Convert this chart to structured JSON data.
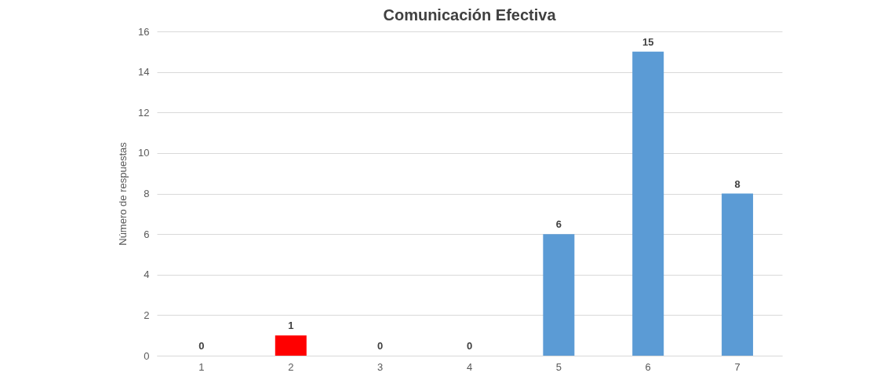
{
  "chart_data": {
    "type": "bar",
    "title": "Comunicación Efectiva",
    "ylabel": "Número de respuestas",
    "categories": [
      "1",
      "2",
      "3",
      "4",
      "5",
      "6",
      "7"
    ],
    "values": [
      0,
      1,
      0,
      0,
      6,
      15,
      8
    ],
    "colors": [
      "#5b9bd5",
      "#ff0000",
      "#5b9bd5",
      "#5b9bd5",
      "#5b9bd5",
      "#5b9bd5",
      "#5b9bd5"
    ],
    "ylim": [
      0,
      16
    ],
    "yticks": [
      0,
      2,
      4,
      6,
      8,
      10,
      12,
      14,
      16
    ],
    "grid": "y",
    "data_labels": true,
    "legend": false
  }
}
